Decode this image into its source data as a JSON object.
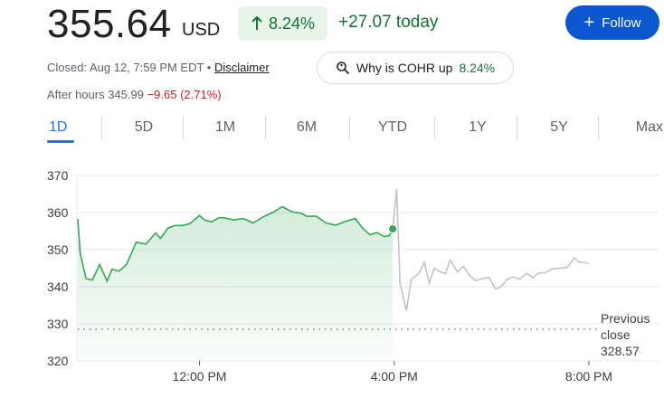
{
  "header": {
    "price": "355.64",
    "currency": "USD",
    "change_pct": "8.24%",
    "change_abs": "+27.07 today",
    "follow_label": "Follow"
  },
  "status": {
    "closed_text": "Closed: Aug 12, 7:59 PM EDT •",
    "disclaimer": "Disclaimer",
    "why_prefix": "Why is COHR up",
    "why_pct": "8.24%",
    "after_hours_prefix": "After hours 345.99",
    "after_hours_change": "−9.65 (2.71%)"
  },
  "tabs": [
    {
      "label": "1D",
      "active": true
    },
    {
      "label": "5D"
    },
    {
      "label": "1M"
    },
    {
      "label": "6M"
    },
    {
      "label": "YTD"
    },
    {
      "label": "1Y"
    },
    {
      "label": "5Y"
    },
    {
      "label": "Max"
    }
  ],
  "colors": {
    "up": "#34a853",
    "after_hours_line": "#c4c4c4",
    "accent": "#1a73e8"
  },
  "chart_data": {
    "type": "line",
    "ylim": [
      320,
      370
    ],
    "yticks": [
      "370",
      "360",
      "350",
      "340",
      "330",
      "320"
    ],
    "yticks_values": [
      370,
      360,
      350,
      340,
      330,
      320
    ],
    "xticks": [
      {
        "label": "12:00 PM",
        "hour": 12
      },
      {
        "label": "4:00 PM",
        "hour": 16
      },
      {
        "label": "8:00 PM",
        "hour": 20
      }
    ],
    "previous_close": {
      "label_1": "Previous",
      "label_2": "close",
      "value_text": "328.57",
      "value": 328.57
    },
    "series": [
      {
        "session": "regular",
        "x": [
          9.5,
          9.55,
          9.67,
          9.8,
          9.95,
          10.1,
          10.2,
          10.35,
          10.5,
          10.7,
          10.9,
          11.1,
          11.2,
          11.35,
          11.5,
          11.65,
          11.8,
          12.0,
          12.1,
          12.25,
          12.4,
          12.5,
          12.7,
          12.9,
          13.1,
          13.3,
          13.5,
          13.7,
          13.9,
          14.1,
          14.2,
          14.4,
          14.6,
          14.8,
          15.0,
          15.2,
          15.35,
          15.5,
          15.65,
          15.8,
          15.9,
          15.97
        ],
        "y": [
          358.3,
          349.0,
          342.2,
          341.8,
          346.0,
          341.5,
          344.7,
          344.2,
          346.0,
          352.0,
          351.5,
          354.5,
          353.0,
          355.8,
          356.5,
          356.5,
          357.0,
          359.2,
          358.0,
          357.5,
          358.6,
          358.6,
          358.0,
          358.4,
          357.2,
          358.8,
          360.0,
          361.6,
          360.2,
          359.8,
          359.0,
          359.0,
          357.2,
          356.6,
          357.6,
          358.4,
          355.8,
          354.0,
          354.6,
          353.5,
          353.8,
          355.6
        ]
      },
      {
        "session": "extended",
        "x": [
          15.97,
          16.05,
          16.12,
          16.25,
          16.35,
          16.5,
          16.62,
          16.72,
          16.82,
          16.92,
          17.05,
          17.15,
          17.3,
          17.42,
          17.55,
          17.68,
          17.8,
          17.95,
          18.08,
          18.2,
          18.32,
          18.45,
          18.58,
          18.72,
          18.85,
          18.95,
          19.1,
          19.25,
          19.4,
          19.55,
          19.7,
          19.8,
          19.9,
          20.0
        ],
        "y": [
          355.6,
          366.4,
          341.0,
          333.5,
          342.0,
          343.5,
          346.6,
          341.0,
          345.0,
          344.2,
          343.5,
          347.2,
          344.0,
          345.5,
          343.0,
          341.6,
          342.2,
          342.5,
          339.4,
          340.0,
          342.0,
          342.6,
          342.0,
          343.6,
          342.4,
          343.6,
          343.8,
          344.8,
          345.0,
          345.2,
          347.8,
          346.6,
          346.6,
          346.2
        ]
      }
    ]
  }
}
